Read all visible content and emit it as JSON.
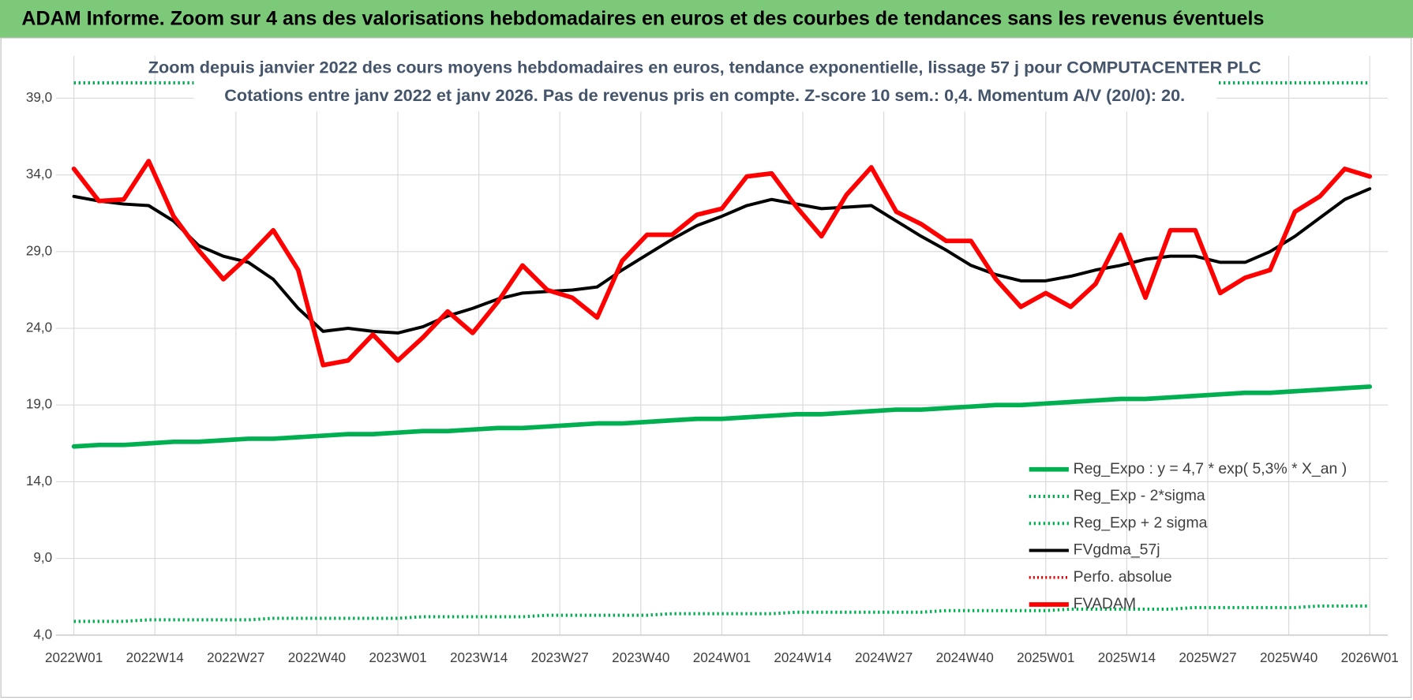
{
  "chart_data": {
    "type": "line",
    "title": "ADAM Informe. Zoom sur 4 ans des valorisations hebdomadaires en euros et des courbes de tendances sans les revenus éventuels",
    "subtitle": [
      "Zoom depuis janvier 2022 des cours moyens hebdomadaires en euros, tendance exponentielle, lissage 57 j pour COMPUTACENTER PLC",
      "Cotations entre janv 2022 et janv 2026. Pas de revenus pris en compte. Z-score 10 sem.: 0,4. Momentum A/V (20/0): 20."
    ],
    "x": [
      0,
      4,
      8,
      12,
      16,
      20,
      24,
      28,
      32,
      36,
      40,
      44,
      48,
      52,
      56,
      60,
      64,
      68,
      72,
      76,
      80,
      84,
      88,
      92,
      96,
      100,
      104,
      108,
      112,
      116,
      120,
      124,
      128,
      132,
      136,
      140,
      144,
      148,
      152,
      156,
      160,
      164,
      168,
      172,
      176,
      180,
      184,
      188,
      192,
      196,
      200,
      204,
      208
    ],
    "xlim": [
      0,
      208
    ],
    "xticks": [
      {
        "value": 0,
        "label": "2022W01"
      },
      {
        "value": 13,
        "label": "2022W14"
      },
      {
        "value": 26,
        "label": "2022W27"
      },
      {
        "value": 39,
        "label": "2022W40"
      },
      {
        "value": 52,
        "label": "2023W01"
      },
      {
        "value": 65,
        "label": "2023W14"
      },
      {
        "value": 78,
        "label": "2023W27"
      },
      {
        "value": 91,
        "label": "2023W40"
      },
      {
        "value": 104,
        "label": "2024W01"
      },
      {
        "value": 117,
        "label": "2024W14"
      },
      {
        "value": 130,
        "label": "2024W27"
      },
      {
        "value": 143,
        "label": "2024W40"
      },
      {
        "value": 156,
        "label": "2025W01"
      },
      {
        "value": 169,
        "label": "2025W14"
      },
      {
        "value": 182,
        "label": "2025W27"
      },
      {
        "value": 195,
        "label": "2025W40"
      },
      {
        "value": 208,
        "label": "2026W01"
      }
    ],
    "ylim": [
      4,
      40
    ],
    "yticks": [
      {
        "value": 4,
        "label": "4,0"
      },
      {
        "value": 9,
        "label": "9,0"
      },
      {
        "value": 14,
        "label": "14,0"
      },
      {
        "value": 19,
        "label": "19,0"
      },
      {
        "value": 24,
        "label": "24,0"
      },
      {
        "value": 29,
        "label": "29,0"
      },
      {
        "value": 34,
        "label": "34,0"
      },
      {
        "value": 39,
        "label": "39,0"
      }
    ],
    "grid": true,
    "legend": "lower right",
    "series": [
      {
        "name": "Reg_Expo : y = 4,7 * exp( 5,3% *  X_an )",
        "color": "#00b050",
        "style": "solid",
        "width": 5,
        "values": [
          16.3,
          16.4,
          16.4,
          16.5,
          16.6,
          16.6,
          16.7,
          16.8,
          16.8,
          16.9,
          17.0,
          17.1,
          17.1,
          17.2,
          17.3,
          17.3,
          17.4,
          17.5,
          17.5,
          17.6,
          17.7,
          17.8,
          17.8,
          17.9,
          18.0,
          18.1,
          18.1,
          18.2,
          18.3,
          18.4,
          18.4,
          18.5,
          18.6,
          18.7,
          18.7,
          18.8,
          18.9,
          19.0,
          19.0,
          19.1,
          19.2,
          19.3,
          19.4,
          19.4,
          19.5,
          19.6,
          19.7,
          19.8,
          19.8,
          19.9,
          20.0,
          20.1,
          20.2
        ]
      },
      {
        "name": "Reg_Exp - 2*sigma",
        "color": "#00b050",
        "style": "dotted",
        "width": 3.5,
        "values": [
          4.9,
          4.9,
          4.9,
          5.0,
          5.0,
          5.0,
          5.0,
          5.0,
          5.1,
          5.1,
          5.1,
          5.1,
          5.1,
          5.1,
          5.2,
          5.2,
          5.2,
          5.2,
          5.2,
          5.3,
          5.3,
          5.3,
          5.3,
          5.3,
          5.4,
          5.4,
          5.4,
          5.4,
          5.4,
          5.5,
          5.5,
          5.5,
          5.5,
          5.5,
          5.5,
          5.6,
          5.6,
          5.6,
          5.6,
          5.6,
          5.7,
          5.7,
          5.7,
          5.7,
          5.7,
          5.8,
          5.8,
          5.8,
          5.8,
          5.8,
          5.9,
          5.9,
          5.9
        ]
      },
      {
        "name": "Reg_Exp + 2 sigma",
        "color": "#00b050",
        "style": "dotted",
        "width": 3.5,
        "values": [
          40,
          40,
          40,
          40,
          40,
          40,
          40,
          40,
          40,
          40,
          40,
          40,
          40,
          40,
          40,
          40,
          40,
          40,
          40,
          40,
          40,
          40,
          40,
          40,
          40,
          40,
          40,
          40,
          40,
          40,
          40,
          40,
          40,
          40,
          40,
          40,
          40,
          40,
          40,
          40,
          40,
          40,
          40,
          40,
          40,
          40,
          40,
          40,
          40,
          40,
          40,
          40,
          40
        ]
      },
      {
        "name": "FVgdma_57j",
        "color": "#000000",
        "style": "solid",
        "width": 3.5,
        "values": [
          32.6,
          32.3,
          32.1,
          32.0,
          31.0,
          29.4,
          28.7,
          28.3,
          27.2,
          25.3,
          23.8,
          24.0,
          23.8,
          23.7,
          24.1,
          24.8,
          25.3,
          25.9,
          26.3,
          26.4,
          26.5,
          26.7,
          27.8,
          28.8,
          29.8,
          30.7,
          31.3,
          32.0,
          32.4,
          32.1,
          31.8,
          31.9,
          32.0,
          31.0,
          30.0,
          29.1,
          28.1,
          27.5,
          27.1,
          27.1,
          27.4,
          27.8,
          28.1,
          28.5,
          28.7,
          28.7,
          28.3,
          28.3,
          29.0,
          30.0,
          31.2,
          32.4,
          33.1
        ]
      },
      {
        "name": "Perfo. absolue",
        "color": "#e00000",
        "style": "dotted",
        "width": 3,
        "values": [
          null,
          null,
          null,
          null,
          null,
          null,
          null,
          null,
          null,
          null,
          null,
          null,
          null,
          null,
          null,
          null,
          null,
          null,
          null,
          null,
          null,
          null,
          null,
          null,
          null,
          null,
          null,
          null,
          null,
          null,
          null,
          null,
          null,
          null,
          null,
          null,
          null,
          null,
          null,
          null,
          null,
          null,
          null,
          null,
          null,
          null,
          null,
          null,
          null,
          null,
          null,
          null,
          null
        ]
      },
      {
        "name": "FVADAM",
        "color": "#ff0000",
        "style": "solid",
        "width": 5,
        "values": [
          34.4,
          32.3,
          32.4,
          34.9,
          31.3,
          29.1,
          27.2,
          28.7,
          30.4,
          27.8,
          21.6,
          21.9,
          23.6,
          21.9,
          23.4,
          25.1,
          23.7,
          25.7,
          28.1,
          26.5,
          26.0,
          24.7,
          28.4,
          30.1,
          30.1,
          31.4,
          31.8,
          33.9,
          34.1,
          31.9,
          30.0,
          32.7,
          34.5,
          31.6,
          30.8,
          29.7,
          29.7,
          27.2,
          25.4,
          26.3,
          25.4,
          26.9,
          30.1,
          26.0,
          30.4,
          30.4,
          26.3,
          27.3,
          27.8,
          31.6,
          32.6,
          34.4,
          33.9
        ]
      }
    ]
  }
}
